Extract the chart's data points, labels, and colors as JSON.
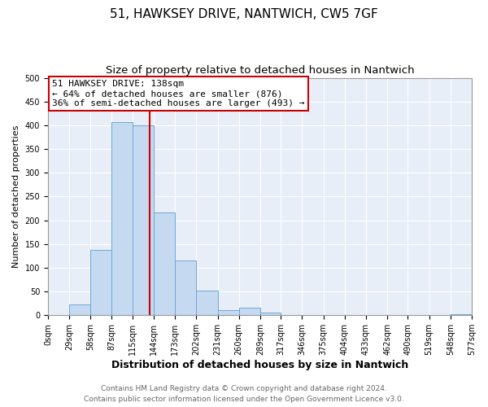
{
  "title": "51, HAWKSEY DRIVE, NANTWICH, CW5 7GF",
  "subtitle": "Size of property relative to detached houses in Nantwich",
  "xlabel": "Distribution of detached houses by size in Nantwich",
  "ylabel": "Number of detached properties",
  "bin_edges": [
    0,
    29,
    58,
    87,
    115,
    144,
    173,
    202,
    231,
    260,
    289,
    317,
    346,
    375,
    404,
    433,
    462,
    490,
    519,
    548,
    577
  ],
  "bin_counts": [
    0,
    22,
    137,
    407,
    400,
    216,
    115,
    52,
    11,
    16,
    5,
    0,
    0,
    0,
    0,
    0,
    0,
    0,
    0,
    2
  ],
  "bar_color": "#c5d9f1",
  "bar_edge_color": "#6fa8d6",
  "property_size": 138,
  "vline_color": "#cc0000",
  "annotation_line1": "51 HAWKSEY DRIVE: 138sqm",
  "annotation_line2": "← 64% of detached houses are smaller (876)",
  "annotation_line3": "36% of semi-detached houses are larger (493) →",
  "annotation_box_edge_color": "#cc0000",
  "annotation_box_face_color": "#ffffff",
  "ylim": [
    0,
    500
  ],
  "yticks": [
    0,
    50,
    100,
    150,
    200,
    250,
    300,
    350,
    400,
    450,
    500
  ],
  "x_tick_labels": [
    "0sqm",
    "29sqm",
    "58sqm",
    "87sqm",
    "115sqm",
    "144sqm",
    "173sqm",
    "202sqm",
    "231sqm",
    "260sqm",
    "289sqm",
    "317sqm",
    "346sqm",
    "375sqm",
    "404sqm",
    "433sqm",
    "462sqm",
    "490sqm",
    "519sqm",
    "548sqm",
    "577sqm"
  ],
  "footer_line1": "Contains HM Land Registry data © Crown copyright and database right 2024.",
  "footer_line2": "Contains public sector information licensed under the Open Government Licence v3.0.",
  "plot_bg_color": "#e8eef8",
  "fig_bg_color": "#ffffff",
  "grid_color": "#ffffff",
  "title_fontsize": 11,
  "subtitle_fontsize": 9.5,
  "xlabel_fontsize": 9,
  "ylabel_fontsize": 8,
  "tick_fontsize": 7,
  "footer_fontsize": 6.5,
  "annotation_fontsize": 8
}
